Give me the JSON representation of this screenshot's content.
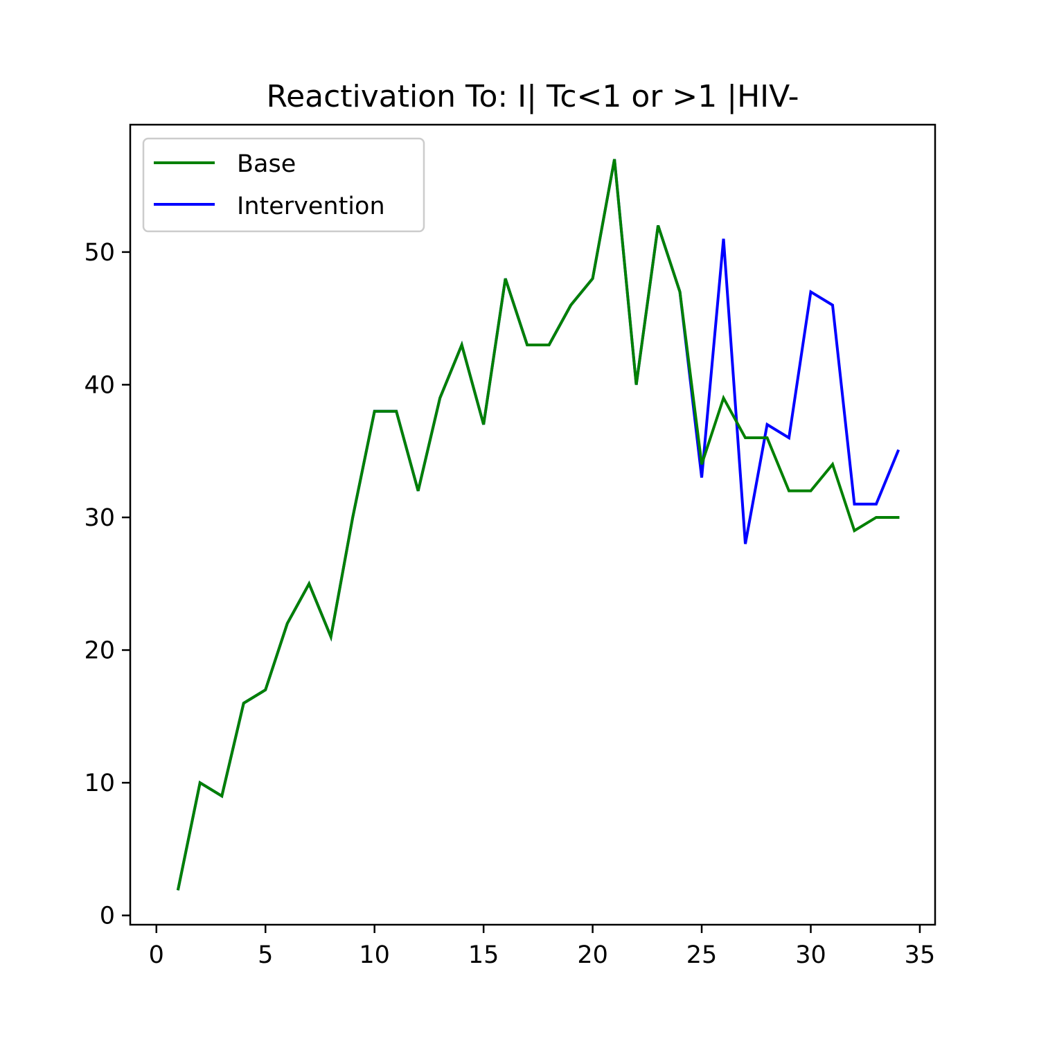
{
  "chart_data": {
    "type": "line",
    "title": "Reactivation To: I| Tc<1 or >1 |HIV-",
    "xlabel": "",
    "ylabel": "",
    "xlim": [
      -1.2,
      35.7
    ],
    "ylim": [
      -0.7,
      59.6
    ],
    "xticks": [
      0,
      5,
      10,
      15,
      20,
      25,
      30,
      35
    ],
    "yticks": [
      0,
      10,
      20,
      30,
      40,
      50
    ],
    "grid": false,
    "legend_position": "top-left",
    "x": [
      1,
      2,
      3,
      4,
      5,
      6,
      7,
      8,
      9,
      10,
      11,
      12,
      13,
      14,
      15,
      16,
      17,
      18,
      19,
      20,
      21,
      22,
      23,
      24,
      25,
      26,
      27,
      28,
      29,
      30,
      31,
      32,
      33,
      34
    ],
    "series": [
      {
        "name": "Base",
        "color": "#008000",
        "values": [
          2,
          10,
          9,
          16,
          17,
          22,
          25,
          21,
          30,
          38,
          38,
          32,
          39,
          43,
          37,
          48,
          43,
          43,
          46,
          48,
          57,
          40,
          52,
          47,
          34,
          39,
          36,
          36,
          32,
          32,
          34,
          29,
          30,
          30
        ]
      },
      {
        "name": "Intervention",
        "color": "#0000ff",
        "values": [
          2,
          10,
          9,
          16,
          17,
          22,
          25,
          21,
          30,
          38,
          38,
          32,
          39,
          43,
          37,
          48,
          43,
          43,
          46,
          48,
          57,
          40,
          52,
          47,
          33,
          51,
          28,
          37,
          36,
          47,
          46,
          31,
          31,
          35
        ]
      }
    ]
  }
}
